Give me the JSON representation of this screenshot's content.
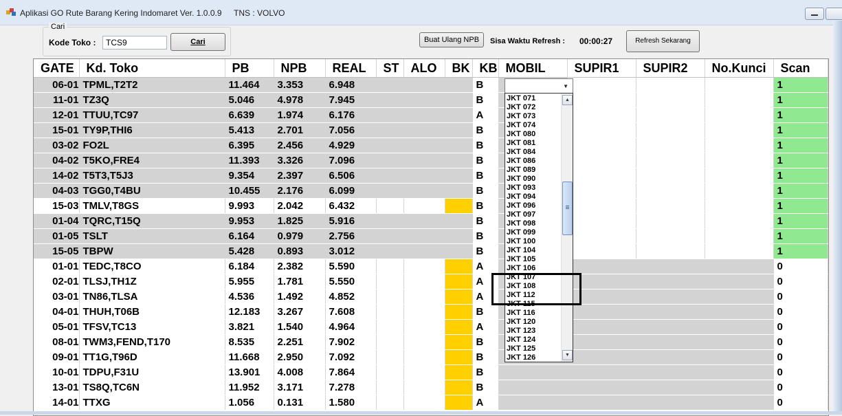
{
  "window": {
    "title": "Aplikasi GO Rute Barang Kering Indomaret Ver. 1.0.0.9",
    "tns": "TNS : VOLVO"
  },
  "search": {
    "group_label": "Cari",
    "kode_label": "Kode Toko :",
    "kode_value": "TCS9",
    "cari_button": "Cari"
  },
  "toolbar": {
    "buat_ulang_button": "Buat Ulang NPB",
    "sisa_label": "Sisa Waktu Refresh  :",
    "timer_value": "00:00:27",
    "refresh_button": "Refresh Sekarang"
  },
  "columns": [
    "GATE",
    "Kd. Toko",
    "PB",
    "NPB",
    "REAL",
    "ST",
    "ALO",
    "BK",
    "KB",
    "MOBIL",
    "SUPIR1",
    "SUPIR2",
    "No.Kunci",
    "Scan"
  ],
  "rows": [
    {
      "gate": "06-01",
      "toko": "TPML,T2T2",
      "pb": "11.464",
      "npb": "3.353",
      "real": "6.948",
      "kb": "B",
      "scan": "1",
      "shade": "gray",
      "bk_yellow": false
    },
    {
      "gate": "11-01",
      "toko": "TZ3Q",
      "pb": "5.046",
      "npb": "4.978",
      "real": "7.945",
      "kb": "B",
      "scan": "1",
      "shade": "gray",
      "bk_yellow": false
    },
    {
      "gate": "12-01",
      "toko": "TTUU,TC97",
      "pb": "6.639",
      "npb": "1.974",
      "real": "6.176",
      "kb": "A",
      "scan": "1",
      "shade": "gray",
      "bk_yellow": false
    },
    {
      "gate": "15-01",
      "toko": "TY9P,THI6",
      "pb": "5.413",
      "npb": "2.701",
      "real": "7.056",
      "kb": "B",
      "scan": "1",
      "shade": "gray",
      "bk_yellow": false
    },
    {
      "gate": "03-02",
      "toko": "FO2L",
      "pb": "6.395",
      "npb": "2.456",
      "real": "4.929",
      "kb": "B",
      "scan": "1",
      "shade": "gray",
      "bk_yellow": false
    },
    {
      "gate": "04-02",
      "toko": "T5KO,FRE4",
      "pb": "11.393",
      "npb": "3.326",
      "real": "7.096",
      "kb": "B",
      "scan": "1",
      "shade": "gray",
      "bk_yellow": false
    },
    {
      "gate": "14-02",
      "toko": "T5T3,T5J3",
      "pb": "9.354",
      "npb": "2.397",
      "real": "6.506",
      "kb": "B",
      "scan": "1",
      "shade": "gray",
      "bk_yellow": false
    },
    {
      "gate": "04-03",
      "toko": "TGG0,T4BU",
      "pb": "10.455",
      "npb": "2.176",
      "real": "6.099",
      "kb": "B",
      "scan": "1",
      "shade": "gray",
      "bk_yellow": false
    },
    {
      "gate": "15-03",
      "toko": "TMLV,T8GS",
      "pb": "9.993",
      "npb": "2.042",
      "real": "6.432",
      "kb": "B",
      "scan": "1",
      "shade": "white",
      "bk_yellow": true
    },
    {
      "gate": "01-04",
      "toko": "TQRC,T15Q",
      "pb": "9.953",
      "npb": "1.825",
      "real": "5.916",
      "kb": "B",
      "scan": "1",
      "shade": "gray",
      "bk_yellow": false
    },
    {
      "gate": "01-05",
      "toko": "TSLT",
      "pb": "6.164",
      "npb": "0.979",
      "real": "2.756",
      "kb": "B",
      "scan": "1",
      "shade": "gray",
      "bk_yellow": false
    },
    {
      "gate": "15-05",
      "toko": "TBPW",
      "pb": "5.428",
      "npb": "0.893",
      "real": "3.012",
      "kb": "B",
      "scan": "1",
      "shade": "gray",
      "bk_yellow": false
    },
    {
      "gate": "01-01",
      "toko": "TEDC,T8CO",
      "pb": "6.184",
      "npb": "2.382",
      "real": "5.590",
      "kb": "A",
      "scan": "0",
      "shade": "white",
      "bk_yellow": true
    },
    {
      "gate": "02-01",
      "toko": "TLSJ,TH1Z",
      "pb": "5.955",
      "npb": "1.781",
      "real": "5.550",
      "kb": "A",
      "scan": "0",
      "shade": "white",
      "bk_yellow": true
    },
    {
      "gate": "03-01",
      "toko": "TN86,TLSA",
      "pb": "4.536",
      "npb": "1.492",
      "real": "4.852",
      "kb": "A",
      "scan": "0",
      "shade": "white",
      "bk_yellow": true
    },
    {
      "gate": "04-01",
      "toko": "THUH,T06B",
      "pb": "12.183",
      "npb": "3.267",
      "real": "7.608",
      "kb": "B",
      "scan": "0",
      "shade": "white",
      "bk_yellow": true
    },
    {
      "gate": "05-01",
      "toko": "TFSV,TC13",
      "pb": "3.821",
      "npb": "1.540",
      "real": "4.964",
      "kb": "A",
      "scan": "0",
      "shade": "white",
      "bk_yellow": true
    },
    {
      "gate": "08-01",
      "toko": "TWM3,FEND,T170",
      "pb": "8.535",
      "npb": "2.251",
      "real": "7.902",
      "kb": "B",
      "scan": "0",
      "shade": "white",
      "bk_yellow": true
    },
    {
      "gate": "09-01",
      "toko": "TT1G,T96D",
      "pb": "11.668",
      "npb": "2.950",
      "real": "7.092",
      "kb": "B",
      "scan": "0",
      "shade": "white",
      "bk_yellow": true
    },
    {
      "gate": "10-01",
      "toko": "TDPU,F31U",
      "pb": "13.901",
      "npb": "4.008",
      "real": "7.864",
      "kb": "B",
      "scan": "0",
      "shade": "white",
      "bk_yellow": true
    },
    {
      "gate": "13-01",
      "toko": "TS8Q,TC6N",
      "pb": "11.952",
      "npb": "3.171",
      "real": "7.278",
      "kb": "B",
      "scan": "0",
      "shade": "white",
      "bk_yellow": true
    },
    {
      "gate": "14-01",
      "toko": "TTXG",
      "pb": "1.056",
      "npb": "0.131",
      "real": "1.580",
      "kb": "A",
      "scan": "0",
      "shade": "white",
      "bk_yellow": true
    }
  ],
  "mobil_dropdown": {
    "items": [
      "JKT 071",
      "JKT 072",
      "JKT 073",
      "JKT 074",
      "JKT 080",
      "JKT 081",
      "JKT 084",
      "JKT 086",
      "JKT 089",
      "JKT 090",
      "JKT 093",
      "JKT 094",
      "JKT 096",
      "JKT 097",
      "JKT 098",
      "JKT 099",
      "JKT 100",
      "JKT 104",
      "JKT 105",
      "JKT 106",
      "JKT 107",
      "JKT 108",
      "JKT 112",
      "JKT 115",
      "JKT 116",
      "JKT 120",
      "JKT 123",
      "JKT 124",
      "JKT 125",
      "JKT 126"
    ]
  },
  "colors": {
    "scan_done": "#90e890",
    "bk_flag": "#ffd000",
    "row_gray": "#d3d3d3"
  }
}
